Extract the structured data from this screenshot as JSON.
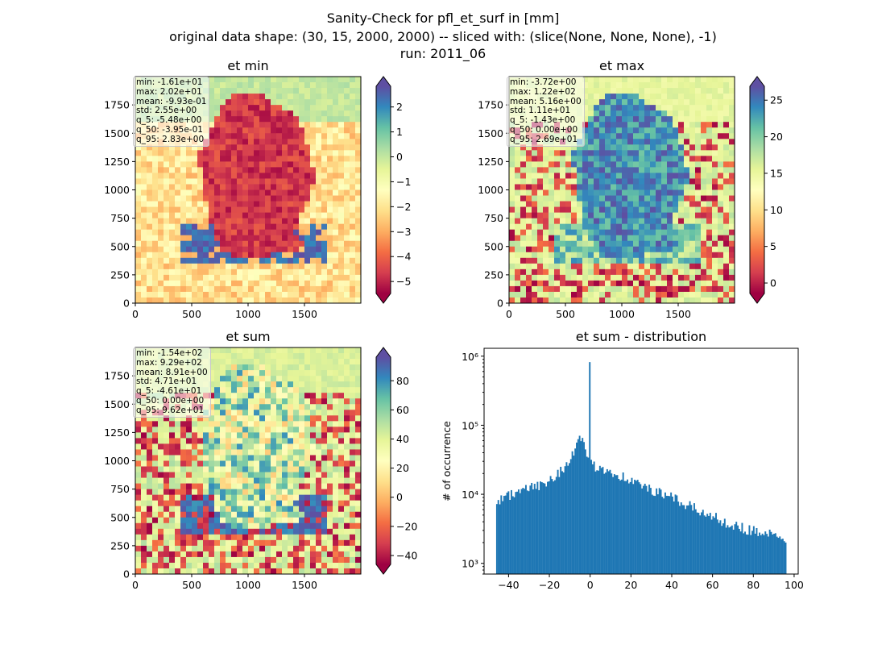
{
  "figure": {
    "title_lines": [
      "Sanity-Check for pfl_et_surf in [mm]",
      "original data shape: (30, 15, 2000, 2000) -- sliced with: (slice(None, None, None), -1)",
      "run: 2011_06"
    ]
  },
  "colors": {
    "cmap_stops": [
      "#9e0142",
      "#d53e4f",
      "#f46d43",
      "#fdae61",
      "#fee08b",
      "#ffffbf",
      "#e6f598",
      "#abdda4",
      "#66c2a5",
      "#3288bd",
      "#5e4fa2"
    ],
    "hist_bar": "#1f77b4",
    "stats_box_border": "#c8c8c8"
  },
  "panels": [
    {
      "title": "et min",
      "xticks": [
        "0",
        "500",
        "1000",
        "1500"
      ],
      "yticks": [
        "0",
        "250",
        "500",
        "750",
        "1000",
        "1250",
        "1500",
        "1750"
      ],
      "colorbar": {
        "range": [
          -5.48,
          2.83
        ],
        "ticks": [
          2,
          1,
          0,
          -1,
          -2,
          -3,
          -4,
          -5
        ],
        "tick_labels": [
          "2",
          "1",
          "0",
          "−1",
          "−2",
          "−3",
          "−4",
          "−5"
        ],
        "extend": "both"
      },
      "stats": [
        "min: -1.61e+01",
        "max: 2.02e+01",
        "mean: -9.93e-01",
        "std: 2.55e+00",
        "q_5: -5.48e+00",
        "q_50: -3.95e-01",
        "q_95: 2.83e+00"
      ]
    },
    {
      "title": "et max",
      "xticks": [
        "0",
        "500",
        "1000",
        "1500"
      ],
      "yticks": [
        "0",
        "250",
        "500",
        "750",
        "1000",
        "1250",
        "1500",
        "1750"
      ],
      "colorbar": {
        "range": [
          -1.43,
          26.9
        ],
        "ticks": [
          25,
          20,
          15,
          10,
          5,
          0
        ],
        "tick_labels": [
          "25",
          "20",
          "15",
          "10",
          "5",
          "0"
        ],
        "extend": "both"
      },
      "stats": [
        "min: -3.72e+00",
        "max: 1.22e+02",
        "mean: 5.16e+00",
        "std: 1.11e+01",
        "q_5: -1.43e+00",
        "q_50: 0.00e+00",
        "q_95: 2.69e+01"
      ]
    },
    {
      "title": "et sum",
      "xticks": [
        "0",
        "500",
        "1000",
        "1500"
      ],
      "yticks": [
        "0",
        "250",
        "500",
        "750",
        "1000",
        "1250",
        "1500",
        "1750"
      ],
      "colorbar": {
        "range": [
          -46.1,
          96.2
        ],
        "ticks": [
          80,
          60,
          40,
          20,
          0,
          -20,
          -40
        ],
        "tick_labels": [
          "80",
          "60",
          "40",
          "20",
          "0",
          "−20",
          "−40"
        ],
        "extend": "both"
      },
      "stats": [
        "min: -1.54e+02",
        "max: 9.29e+02",
        "mean: 8.91e+00",
        "std: 4.71e+01",
        "q_5: -4.61e+01",
        "q_50: 0.00e+00",
        "q_95: 9.62e+01"
      ]
    }
  ],
  "chart_data": {
    "type": "bar",
    "title": "et sum - distribution",
    "xlabel": "",
    "ylabel": "# of occurrence",
    "xlim": [
      -52,
      102
    ],
    "ylim": [
      700,
      1300000
    ],
    "yscale": "log",
    "xticks": [
      -40,
      -20,
      0,
      20,
      40,
      60,
      80,
      100
    ],
    "xtick_labels": [
      "−40",
      "−20",
      "0",
      "20",
      "40",
      "60",
      "80",
      "100"
    ],
    "yticks": [
      1000,
      10000,
      100000,
      1000000
    ],
    "ytick_labels": [
      "10³",
      "10⁴",
      "10⁵",
      "10⁶"
    ],
    "bin_range": [
      -46.1,
      96.2
    ],
    "bins": 200,
    "anchors": [
      [
        -46.1,
        8000
      ],
      [
        -40,
        9800
      ],
      [
        -30,
        12000
      ],
      [
        -20,
        16000
      ],
      [
        -12,
        26000
      ],
      [
        -8,
        40000
      ],
      [
        -5,
        68000
      ],
      [
        -3,
        55000
      ],
      [
        -1.5,
        28000
      ],
      [
        -0.2,
        30000
      ],
      [
        0,
        820000
      ],
      [
        0.5,
        28000
      ],
      [
        2,
        26000
      ],
      [
        10,
        22000
      ],
      [
        20,
        16000
      ],
      [
        30,
        11500
      ],
      [
        40,
        9000
      ],
      [
        50,
        6500
      ],
      [
        60,
        4800
      ],
      [
        70,
        3600
      ],
      [
        80,
        3000
      ],
      [
        90,
        2600
      ],
      [
        96.2,
        1800
      ]
    ]
  }
}
